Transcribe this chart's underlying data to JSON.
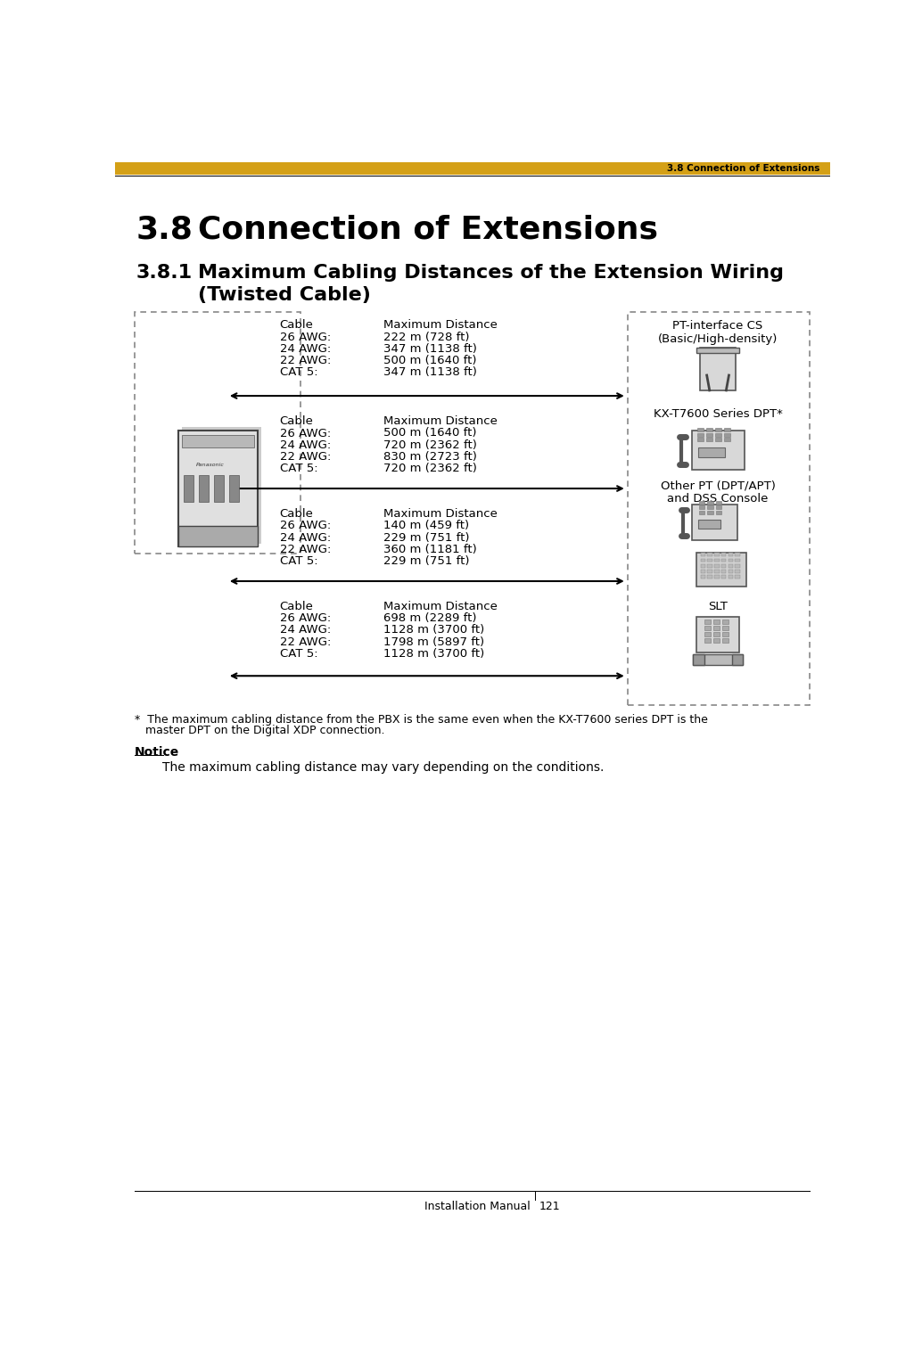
{
  "page_title_small": "3.8 Connection of Extensions",
  "page_number_left": "Installation Manual",
  "page_number_right": "121",
  "section_number": "3.8",
  "section_title": "Connection of Extensions",
  "subsection_number": "3.8.1",
  "subsection_line1": "Maximum Cabling Distances of the Extension Wiring",
  "subsection_line2": "(Twisted Cable)",
  "notice_title": "Notice",
  "notice_text": "The maximum cabling distance may vary depending on the conditions.",
  "footnote_line1": "*  The maximum cabling distance from the PBX is the same even when the KX-T7600 series DPT is the",
  "footnote_line2": "   master DPT on the Digital XDP connection.",
  "cable_blocks": [
    {
      "label": "Cable",
      "col2": "Maximum Distance",
      "rows": [
        [
          "26 AWG:",
          "222 m (728 ft)"
        ],
        [
          "24 AWG:",
          "347 m (1138 ft)"
        ],
        [
          "22 AWG:",
          "500 m (1640 ft)"
        ],
        [
          "CAT 5:",
          "347 m (1138 ft)"
        ]
      ]
    },
    {
      "label": "Cable",
      "col2": "Maximum Distance",
      "rows": [
        [
          "26 AWG:",
          "500 m (1640 ft)"
        ],
        [
          "24 AWG:",
          "720 m (2362 ft)"
        ],
        [
          "22 AWG:",
          "830 m (2723 ft)"
        ],
        [
          "CAT 5:",
          "720 m (2362 ft)"
        ]
      ]
    },
    {
      "label": "Cable",
      "col2": "Maximum Distance",
      "rows": [
        [
          "26 AWG:",
          "140 m (459 ft)"
        ],
        [
          "24 AWG:",
          "229 m (751 ft)"
        ],
        [
          "22 AWG:",
          "360 m (1181 ft)"
        ],
        [
          "CAT 5:",
          "229 m (751 ft)"
        ]
      ]
    },
    {
      "label": "Cable",
      "col2": "Maximum Distance",
      "rows": [
        [
          "26 AWG:",
          "698 m (2289 ft)"
        ],
        [
          "24 AWG:",
          "1128 m (3700 ft)"
        ],
        [
          "22 AWG:",
          "1798 m (5897 ft)"
        ],
        [
          "CAT 5:",
          "1128 m (3700 ft)"
        ]
      ]
    }
  ],
  "device_labels": [
    "PT-interface CS\n(Basic/High-density)",
    "KX-T7600 Series DPT*",
    "Other PT (DPT/APT)\nand DSS Console",
    "SLT"
  ],
  "header_bar_color": "#D4A017",
  "dashed_border_color": "#888888",
  "text_color": "#000000",
  "bg_color": "#ffffff"
}
